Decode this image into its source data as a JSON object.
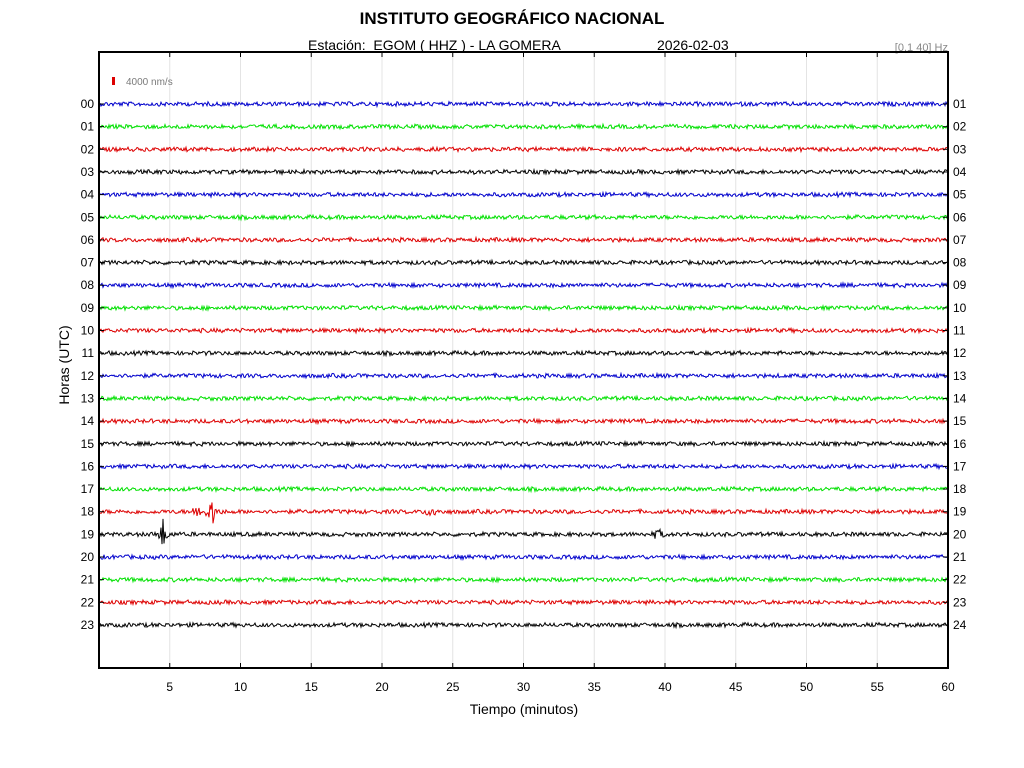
{
  "header": {
    "title": "INSTITUTO GEOGRÁFICO NACIONAL",
    "station": "Estación:  EGOM ( HHZ ) - LA GOMERA",
    "date": "2026-02-03",
    "filter": "[0.1 40] Hz"
  },
  "chart_data": {
    "type": "line",
    "title": "INSTITUTO GEOGRÁFICO NACIONAL",
    "xlabel": "Tiempo (minutos)",
    "ylabel": "Horas (UTC)",
    "xlim": [
      0,
      60
    ],
    "x_ticks": [
      "5",
      "10",
      "15",
      "20",
      "25",
      "30",
      "35",
      "40",
      "45",
      "50",
      "55",
      "60"
    ],
    "left_hour_labels": [
      "00",
      "01",
      "02",
      "03",
      "04",
      "05",
      "06",
      "07",
      "08",
      "09",
      "10",
      "11",
      "12",
      "13",
      "14",
      "15",
      "16",
      "17",
      "18",
      "19",
      "20",
      "21",
      "22",
      "23"
    ],
    "right_hour_labels": [
      "01",
      "02",
      "03",
      "04",
      "05",
      "06",
      "07",
      "08",
      "09",
      "10",
      "11",
      "12",
      "13",
      "14",
      "15",
      "16",
      "17",
      "18",
      "19",
      "20",
      "21",
      "22",
      "23",
      "24"
    ],
    "scale_label": "4000 nm/s",
    "trace_colors": [
      "#0000cc",
      "#00e000",
      "#dd0000",
      "#000000"
    ],
    "grid": true,
    "events": [
      {
        "hour": "18",
        "minute": 7.0,
        "amplitude": 0.6
      },
      {
        "hour": "18",
        "minute": 8.0,
        "amplitude": 1.0
      },
      {
        "hour": "18",
        "minute": 23.5,
        "amplitude": 0.5
      },
      {
        "hour": "19",
        "minute": 4.5,
        "amplitude": 1.0
      },
      {
        "hour": "19",
        "minute": 39.5,
        "amplitude": 0.4
      }
    ]
  }
}
